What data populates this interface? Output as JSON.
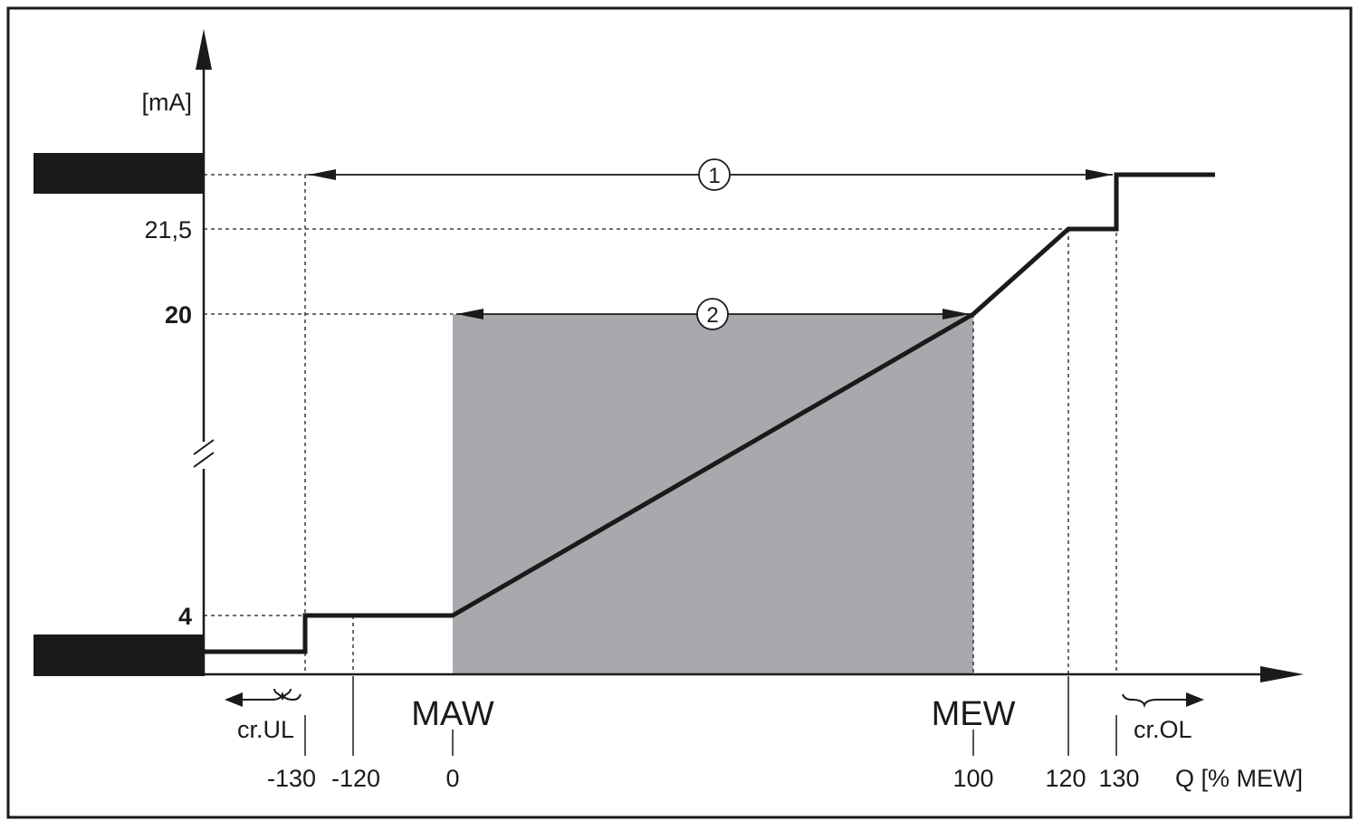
{
  "diagram": {
    "y_axis_unit": "[mA]",
    "x_axis_unit": "Q [% MEW]",
    "y_labels": {
      "v21_5": "21,5",
      "v20": "20",
      "v4": "4"
    },
    "x_ticks": {
      "m130": "-130",
      "m120": "-120",
      "zero": "0",
      "hundred": "100",
      "p120": "120",
      "p130": "130"
    },
    "point_labels": {
      "start": "MAW",
      "end": "MEW"
    },
    "range_labels": {
      "under": "cr.UL",
      "over": "cr.OL"
    },
    "callouts": {
      "full_range": "1",
      "measuring_range": "2"
    },
    "colors": {
      "line": "#1a1a1a",
      "shaded_area": "#a8a9ac",
      "fault_block": "#1a1a1a"
    }
  },
  "chart_data": {
    "type": "line",
    "x": [
      -200,
      -130,
      -130,
      -120,
      0,
      100,
      120,
      130,
      130,
      200
    ],
    "y": [
      3.5,
      3.5,
      4,
      4,
      4,
      20,
      21.5,
      21.5,
      22,
      22
    ],
    "xlabel": "Q [% MEW]",
    "ylabel": "[mA]",
    "y_break": true
  }
}
